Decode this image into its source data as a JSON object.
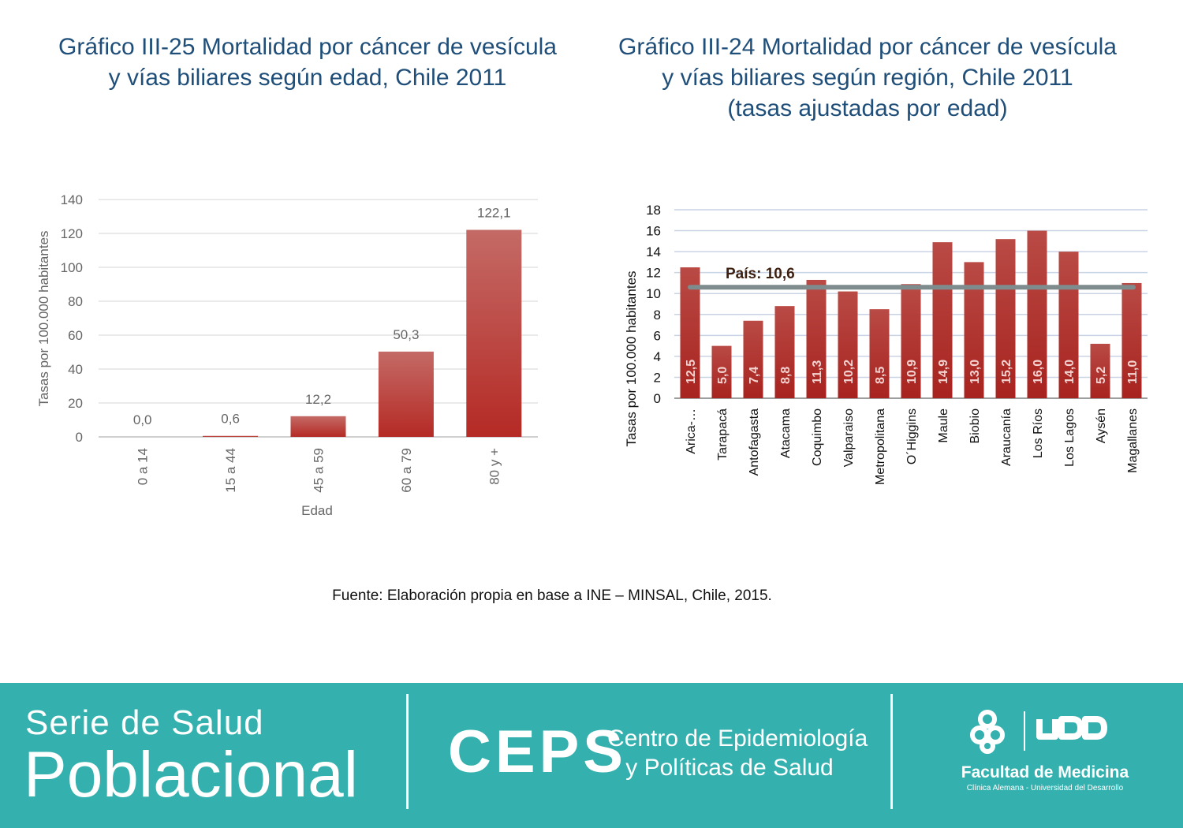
{
  "chart_data": [
    {
      "type": "bar",
      "title_lines": [
        "Gráfico III-25 Mortalidad por cáncer de vesícula",
        "y vías biliares según edad, Chile 2011"
      ],
      "xlabel": "Edad",
      "ylabel": "Tasas por 100.000 habitantes",
      "categories": [
        "0 a 14",
        "15 a 44",
        "45 a 59",
        "60 a 79",
        "80 y +"
      ],
      "values": [
        0.0,
        0.6,
        12.2,
        50.3,
        122.1
      ],
      "data_labels": [
        "0,0",
        "0,6",
        "12,2",
        "50,3",
        "122,1"
      ],
      "ylim": [
        0,
        140
      ],
      "yticks": [
        0,
        20,
        40,
        60,
        80,
        100,
        120,
        140
      ],
      "grid": true,
      "bar_color": "#c0392b"
    },
    {
      "type": "bar",
      "title_lines": [
        "Gráfico III-24 Mortalidad por cáncer de vesícula",
        "y vías biliares según región, Chile 2011",
        "(tasas ajustadas por edad)"
      ],
      "xlabel": "",
      "ylabel": "Tasas por 100.000 habitantes",
      "categories": [
        "Arica-…",
        "Tarapacá",
        "Antofagasta",
        "Atacama",
        "Coquimbo",
        "Valparaiso",
        "Metropolitana",
        "O´Higgins",
        "Maule",
        "Biobio",
        "Araucanía",
        "Los Ríos",
        "Los Lagos",
        "Aysén",
        "Magallanes"
      ],
      "values": [
        12.5,
        5.0,
        7.4,
        8.8,
        11.3,
        10.2,
        8.5,
        10.9,
        14.9,
        13.0,
        15.2,
        16.0,
        14.0,
        5.2,
        11.0
      ],
      "data_labels": [
        "12,5",
        "5,0",
        "7,4",
        "8,8",
        "11,3",
        "10,2",
        "8,5",
        "10,9",
        "14,9",
        "13,0",
        "15,2",
        "16,0",
        "14,0",
        "5,2",
        "11,0"
      ],
      "ylim": [
        0,
        18
      ],
      "yticks": [
        0,
        2,
        4,
        6,
        8,
        10,
        12,
        14,
        16,
        18
      ],
      "grid": true,
      "bar_color": "#b03a2e",
      "reference_line": {
        "value": 10.6,
        "label": "País: 10,6",
        "color": "#7f8c8d"
      }
    }
  ],
  "source": "Fuente: Elaboración propia en base a INE – MINSAL, Chile, 2015.",
  "footer": {
    "serie_line1": "Serie de Salud",
    "serie_line2": "Poblacional",
    "ceps": "CEPS",
    "ceps_sub_line1": "Centro de Epidemiología",
    "ceps_sub_line2": "y Políticas de Salud",
    "udd_logo_icon": "udd-logo-icon",
    "faculty": "Facultad de Medicina",
    "faculty_sub": "Clínica Alemana - Universidad del Desarrollo",
    "background_color": "#34b1ae"
  }
}
